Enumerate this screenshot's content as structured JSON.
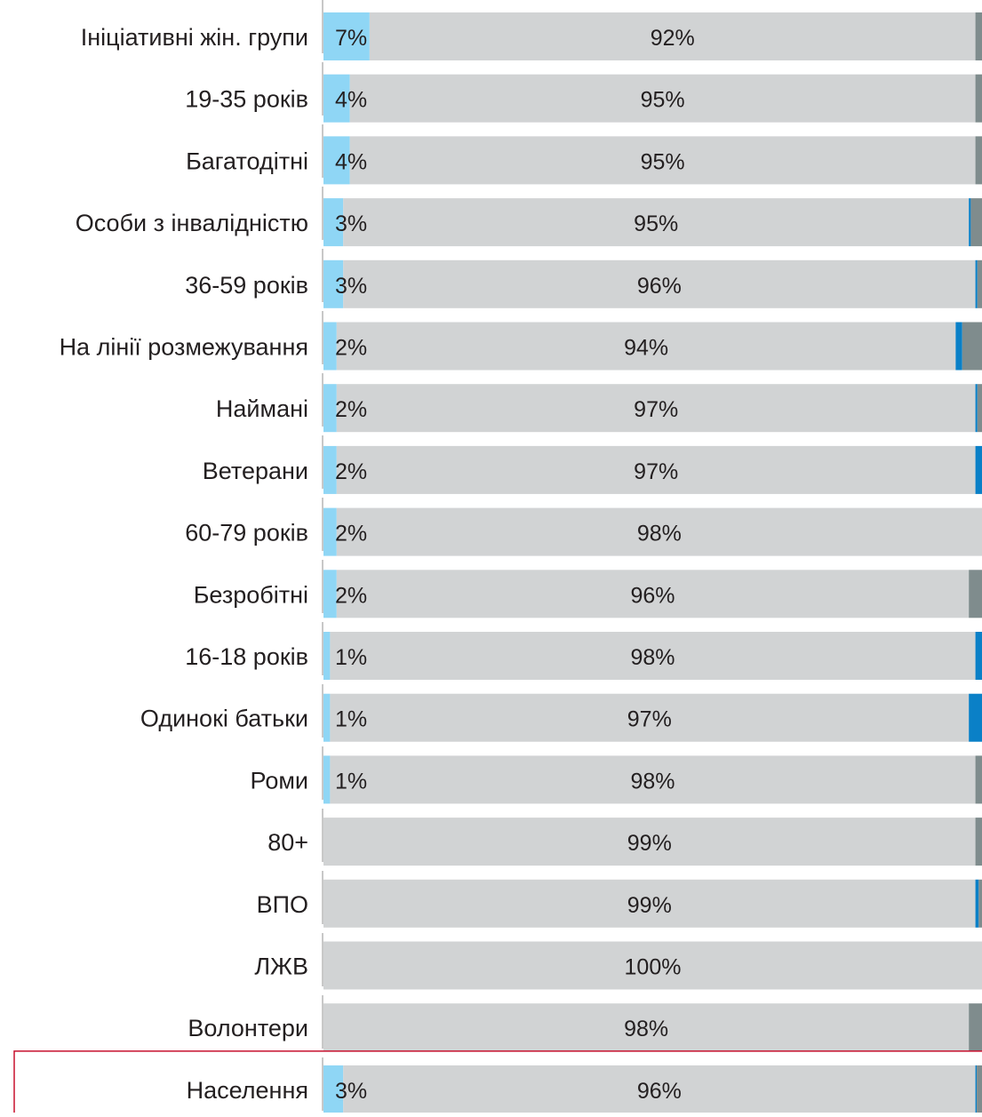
{
  "chart_data": {
    "type": "bar",
    "orientation": "horizontal",
    "stacked": true,
    "normalized_to": 100,
    "xlim": [
      0,
      100
    ],
    "grid": false,
    "legend": "none",
    "highlighted_category": "Населення",
    "categories": [
      "Ініціативні жін. групи",
      "19-35 років",
      "Багатодітні",
      "Особи з інвалідністю",
      "36-59 років",
      "На лінії розмежування",
      "Наймані",
      "Ветерани",
      "60-79 років",
      "Безробітні",
      "16-18 років",
      "Одинокі батьки",
      "Роми",
      "80+",
      "ВПО",
      "ЛЖВ",
      "Волонтери",
      "Населення"
    ],
    "series": [
      {
        "color": "#8fd6f5",
        "values": [
          7,
          4,
          4,
          3,
          3,
          2,
          2,
          2,
          2,
          2,
          1,
          1,
          1,
          0,
          0,
          0,
          0,
          3
        ],
        "labels": [
          "7%",
          "4%",
          "4%",
          "3%",
          "3%",
          "2%",
          "2%",
          "2%",
          "2%",
          "2%",
          "1%",
          "1%",
          "1%",
          "",
          "",
          "",
          "",
          "3%"
        ]
      },
      {
        "color": "#d1d3d4",
        "values": [
          92,
          95,
          95,
          95,
          96,
          94,
          97,
          97,
          98,
          96,
          98,
          97,
          98,
          99,
          99,
          100,
          98,
          96
        ],
        "labels": [
          "92%",
          "95%",
          "95%",
          "95%",
          "96%",
          "94%",
          "97%",
          "97%",
          "98%",
          "96%",
          "98%",
          "97%",
          "98%",
          "99%",
          "99%",
          "100%",
          "98%",
          "96%"
        ]
      },
      {
        "color": "#0a80c7",
        "values": [
          0,
          0,
          0,
          0.3,
          0.3,
          1,
          0.3,
          1.2,
          0.2,
          0,
          1,
          2.2,
          0,
          0,
          0.5,
          0,
          0,
          0.2
        ],
        "labels": []
      },
      {
        "color": "#7f8c8d",
        "values": [
          1,
          1,
          1,
          1.7,
          0.7,
          3,
          0.7,
          0,
          0.3,
          2.2,
          0.2,
          0,
          1,
          0.5,
          1,
          0.4,
          2.3,
          0.5
        ],
        "labels": []
      }
    ]
  },
  "colors": {
    "axis": "#c8c8c8",
    "label_text": "#231f20",
    "highlight_border": "#c8102e"
  }
}
